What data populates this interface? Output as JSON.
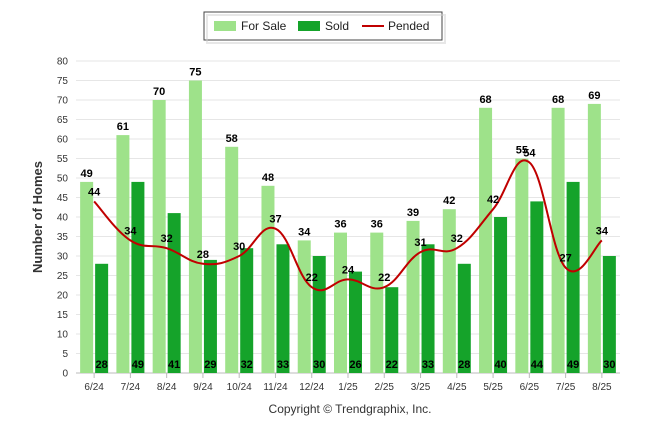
{
  "chart_data": {
    "type": "bar",
    "categories": [
      "6/24",
      "7/24",
      "8/24",
      "9/24",
      "10/24",
      "11/24",
      "12/24",
      "1/25",
      "2/25",
      "3/25",
      "4/25",
      "5/25",
      "6/25",
      "7/25",
      "8/25"
    ],
    "series": [
      {
        "name": "For Sale",
        "type": "bar",
        "color": "#9ee28a",
        "values": [
          49,
          61,
          70,
          75,
          58,
          48,
          34,
          36,
          36,
          39,
          42,
          68,
          55,
          68,
          69
        ]
      },
      {
        "name": "Sold",
        "type": "bar",
        "color": "#15a32a",
        "values": [
          28,
          49,
          41,
          29,
          32,
          33,
          30,
          26,
          22,
          33,
          28,
          40,
          44,
          49,
          30
        ]
      },
      {
        "name": "Pended",
        "type": "line",
        "color": "#c00000",
        "values": [
          44,
          34,
          32,
          28,
          30,
          37,
          22,
          24,
          22,
          31,
          32,
          42,
          54,
          27,
          34
        ]
      }
    ],
    "ylabel": "Number of Homes",
    "ylim": [
      0,
      80
    ],
    "yticks": [
      0,
      5,
      10,
      15,
      20,
      25,
      30,
      35,
      40,
      45,
      50,
      55,
      60,
      65,
      70,
      75,
      80
    ],
    "grid": true,
    "legend_position": "top-center"
  },
  "copyright": "Copyright © Trendgraphix, Inc."
}
